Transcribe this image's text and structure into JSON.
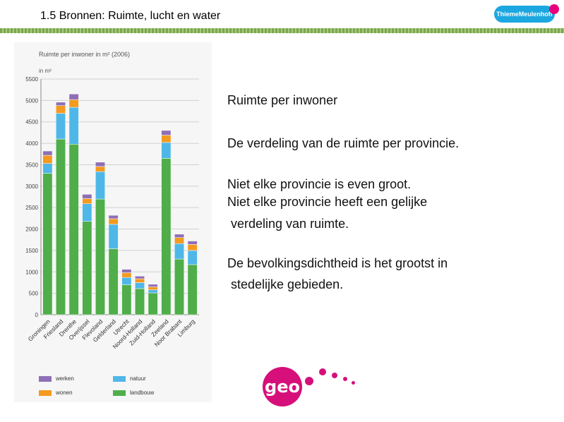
{
  "slide": {
    "title": "1.5 Bronnen: Ruimte, lucht en water",
    "publisher_logo": "ThiemeMeulenhoff",
    "brand_logo": "geo"
  },
  "text": {
    "heading": "Ruimte per inwoner",
    "line1": "De verdeling van de ruimte per provincie.",
    "line2": "Niet elke provincie is even groot.",
    "line3": "Niet elke provincie heeft een gelijke",
    "line4": " verdeling van ruimte.",
    "line5": "De bevolkingsdichtheid is het grootst in",
    "line6": " stedelijke gebieden."
  },
  "colors": {
    "werken": "#8e6fb5",
    "wonen": "#f39a1f",
    "natuur": "#4fb7e8",
    "landbouw": "#4fae4a",
    "brand": "#d60f7a",
    "rule": "#7aa84a"
  },
  "chart_data": {
    "type": "bar",
    "stacked": true,
    "title": "Ruimte per inwoner in m² (2006)",
    "ylabel": "in m²",
    "ylim": [
      0,
      5500
    ],
    "yticks": [
      0,
      500,
      1000,
      1500,
      2000,
      2500,
      3000,
      3500,
      4000,
      4500,
      5000,
      5500
    ],
    "categories": [
      "Groningen",
      "Friesland",
      "Drenthe",
      "Overijssel",
      "Flevoland",
      "Gelderland",
      "Utrecht",
      "Noord-Holland",
      "Zuid-Holland",
      "Zeeland",
      "Noor Brabant",
      "Limburg"
    ],
    "series": [
      {
        "name": "landbouw",
        "values": [
          3300,
          4100,
          3980,
          2180,
          2700,
          1540,
          700,
          610,
          510,
          3650,
          1300,
          1170
        ]
      },
      {
        "name": "natuur",
        "values": [
          230,
          600,
          860,
          410,
          640,
          570,
          170,
          140,
          70,
          370,
          360,
          330
        ]
      },
      {
        "name": "wonen",
        "values": [
          190,
          180,
          180,
          120,
          120,
          130,
          110,
          90,
          70,
          170,
          140,
          140
        ]
      },
      {
        "name": "werken",
        "values": [
          100,
          80,
          130,
          100,
          100,
          80,
          80,
          60,
          60,
          110,
          80,
          80
        ]
      }
    ],
    "grid": true,
    "legend": "bottom"
  }
}
